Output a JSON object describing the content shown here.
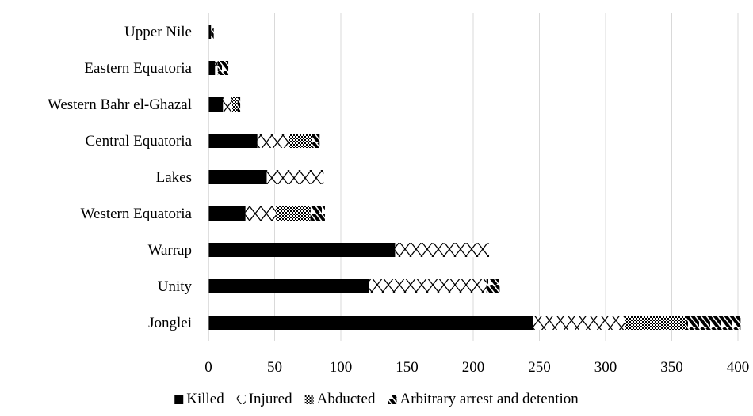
{
  "chart_data": {
    "type": "bar",
    "orientation": "horizontal",
    "stacked": true,
    "title": "",
    "xlabel": "",
    "ylabel": "",
    "categories": [
      "Jonglei",
      "Unity",
      "Warrap",
      "Western Equatoria",
      "Lakes",
      "Central Equatoria",
      "Western Bahr el-Ghazal",
      "Eastern Equatoria",
      "Upper Nile"
    ],
    "series": [
      {
        "name": "Killed",
        "pattern": "solid",
        "values": [
          245,
          121,
          141,
          28,
          44,
          37,
          11,
          5,
          2
        ]
      },
      {
        "name": "Injured",
        "pattern": "crosses",
        "values": [
          70,
          89,
          71,
          23,
          43,
          24,
          7,
          2,
          0
        ]
      },
      {
        "name": "Abducted",
        "pattern": "checker",
        "values": [
          46,
          0,
          0,
          26,
          0,
          17,
          4,
          0,
          0
        ]
      },
      {
        "name": "Arbitrary arrest and detention",
        "pattern": "stripes",
        "values": [
          41,
          10,
          0,
          11,
          0,
          6,
          2,
          8,
          2
        ]
      }
    ],
    "xlim": [
      0,
      400
    ],
    "xticks": [
      0,
      50,
      100,
      150,
      200,
      250,
      300,
      350,
      400
    ],
    "grid": "vertical",
    "legend": "bottom",
    "colors": {
      "bar": "#000000",
      "grid": "#d9d9d9",
      "background": "#ffffff"
    }
  }
}
